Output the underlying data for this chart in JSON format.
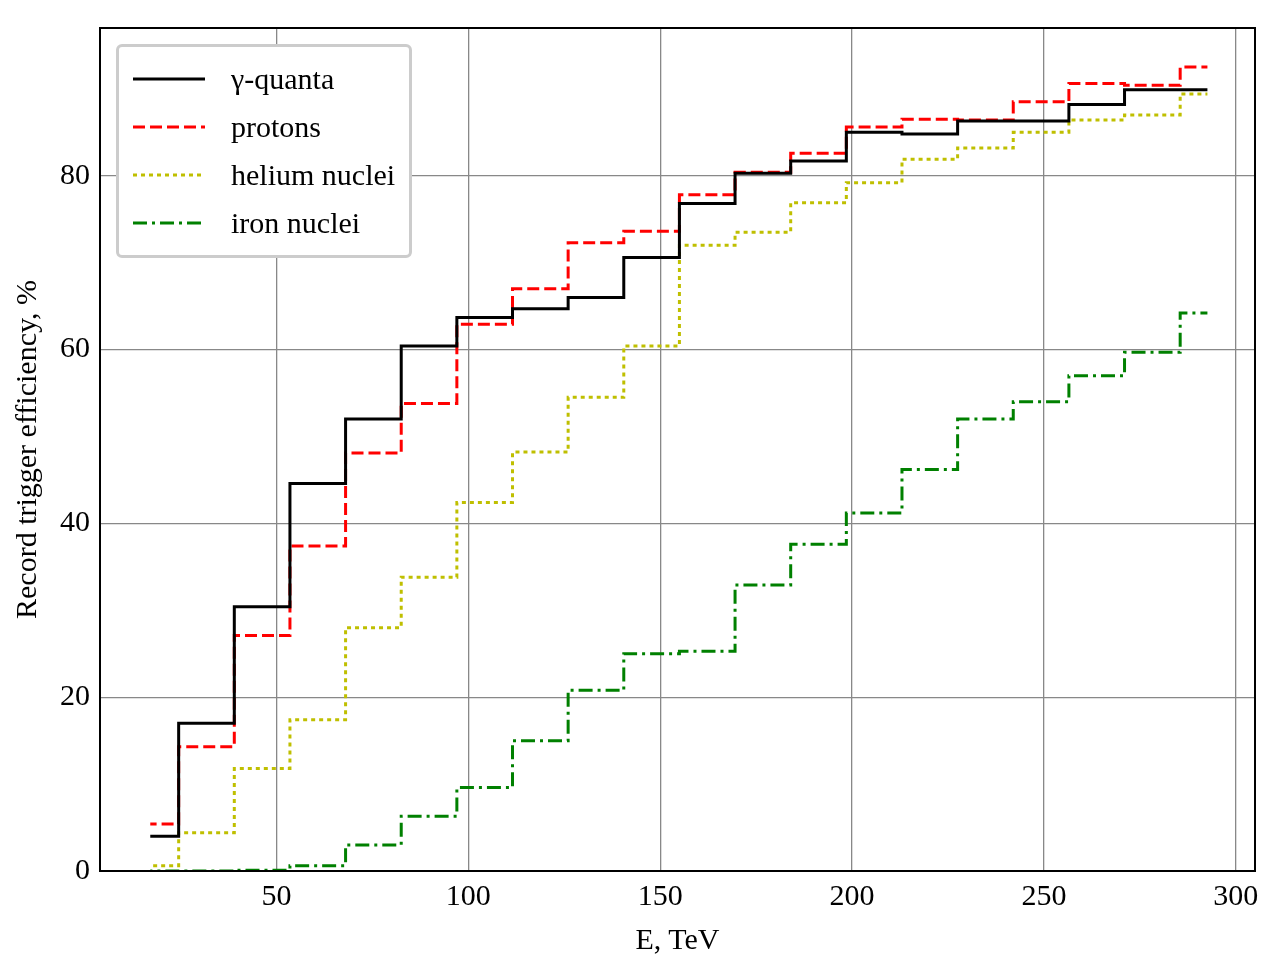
{
  "chart_data": {
    "type": "step",
    "xlabel": "E, TeV",
    "ylabel": "Record trigger efficiency, %",
    "x": [
      17.1,
      24.5,
      39.0,
      53.5,
      68.0,
      82.5,
      97.0,
      111.5,
      126.0,
      140.5,
      155.0,
      169.5,
      184.0,
      198.5,
      213.0,
      227.5,
      242.0,
      256.5,
      271.0,
      285.5,
      292.6
    ],
    "series": [
      {
        "name": "γ-quanta",
        "color": "#000000",
        "line_style": "solid",
        "values": [
          4.0,
          17.0,
          30.4,
          44.6,
          52.0,
          60.4,
          63.7,
          64.7,
          66.0,
          70.6,
          76.8,
          80.3,
          81.7,
          85.0,
          84.8,
          86.3,
          86.3,
          88.2,
          89.9,
          89.9,
          89.9
        ]
      },
      {
        "name": "protons",
        "color": "#ff0000",
        "line_style": "dashed",
        "values": [
          5.4,
          14.3,
          27.1,
          37.4,
          48.1,
          53.8,
          62.9,
          67.0,
          72.3,
          73.6,
          77.8,
          80.4,
          82.6,
          85.6,
          86.5,
          86.4,
          88.5,
          90.6,
          90.4,
          92.5,
          92.5
        ]
      },
      {
        "name": "helium nuclei",
        "color": "#bfbf00",
        "line_style": "dotted",
        "values": [
          0.6,
          4.4,
          11.8,
          17.4,
          28.0,
          33.8,
          42.4,
          48.2,
          54.5,
          60.4,
          72.0,
          73.5,
          76.9,
          79.2,
          81.9,
          83.2,
          85.0,
          86.4,
          87.0,
          89.4,
          89.4
        ]
      },
      {
        "name": "iron nuclei",
        "color": "#008000",
        "line_style": "dashdot",
        "values": [
          0.0,
          0.0,
          0.1,
          0.6,
          3.0,
          6.3,
          9.6,
          15.0,
          20.8,
          25.0,
          25.3,
          32.9,
          37.6,
          41.2,
          46.2,
          52.0,
          54.0,
          57.0,
          59.7,
          64.2,
          64.2
        ]
      }
    ],
    "xlim": [
      4,
      305
    ],
    "xticks": [
      50,
      100,
      150,
      200,
      250,
      300
    ],
    "ylim": [
      0,
      97
    ],
    "yticks": [
      0,
      20,
      40,
      60,
      80
    ],
    "grid": true,
    "legend": "top left"
  }
}
